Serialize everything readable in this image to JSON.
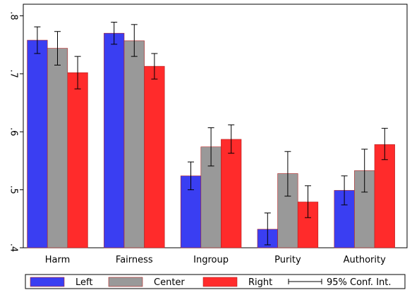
{
  "chart_data": {
    "type": "bar",
    "title": "",
    "xlabel": "",
    "ylabel": "",
    "categories": [
      "Harm",
      "Fairness",
      "Ingroup",
      "Purity",
      "Authority"
    ],
    "ylim": [
      0.4,
      0.82
    ],
    "yticks": [
      0.4,
      0.5,
      0.6,
      0.7,
      0.8
    ],
    "ytick_labels": [
      ".4",
      ".5",
      ".6",
      ".7",
      ".8"
    ],
    "series": [
      {
        "name": "Left",
        "color": "#3a3ef2",
        "values": [
          0.758,
          0.77,
          0.524,
          0.432,
          0.499
        ],
        "ci_low": [
          0.735,
          0.751,
          0.5,
          0.405,
          0.474
        ],
        "ci_high": [
          0.781,
          0.789,
          0.548,
          0.46,
          0.524
        ]
      },
      {
        "name": "Center",
        "color": "#999999",
        "values": [
          0.744,
          0.757,
          0.574,
          0.528,
          0.533
        ],
        "ci_low": [
          0.715,
          0.73,
          0.541,
          0.489,
          0.496
        ],
        "ci_high": [
          0.773,
          0.785,
          0.607,
          0.566,
          0.57
        ]
      },
      {
        "name": "Right",
        "color": "#ff2b2b",
        "values": [
          0.702,
          0.713,
          0.587,
          0.479,
          0.578
        ],
        "ci_low": [
          0.674,
          0.691,
          0.563,
          0.452,
          0.552
        ],
        "ci_high": [
          0.73,
          0.735,
          0.612,
          0.507,
          0.606
        ]
      }
    ],
    "errorbar_label": "95% Conf. Int.",
    "grid": false,
    "legend_position": "bottom"
  }
}
